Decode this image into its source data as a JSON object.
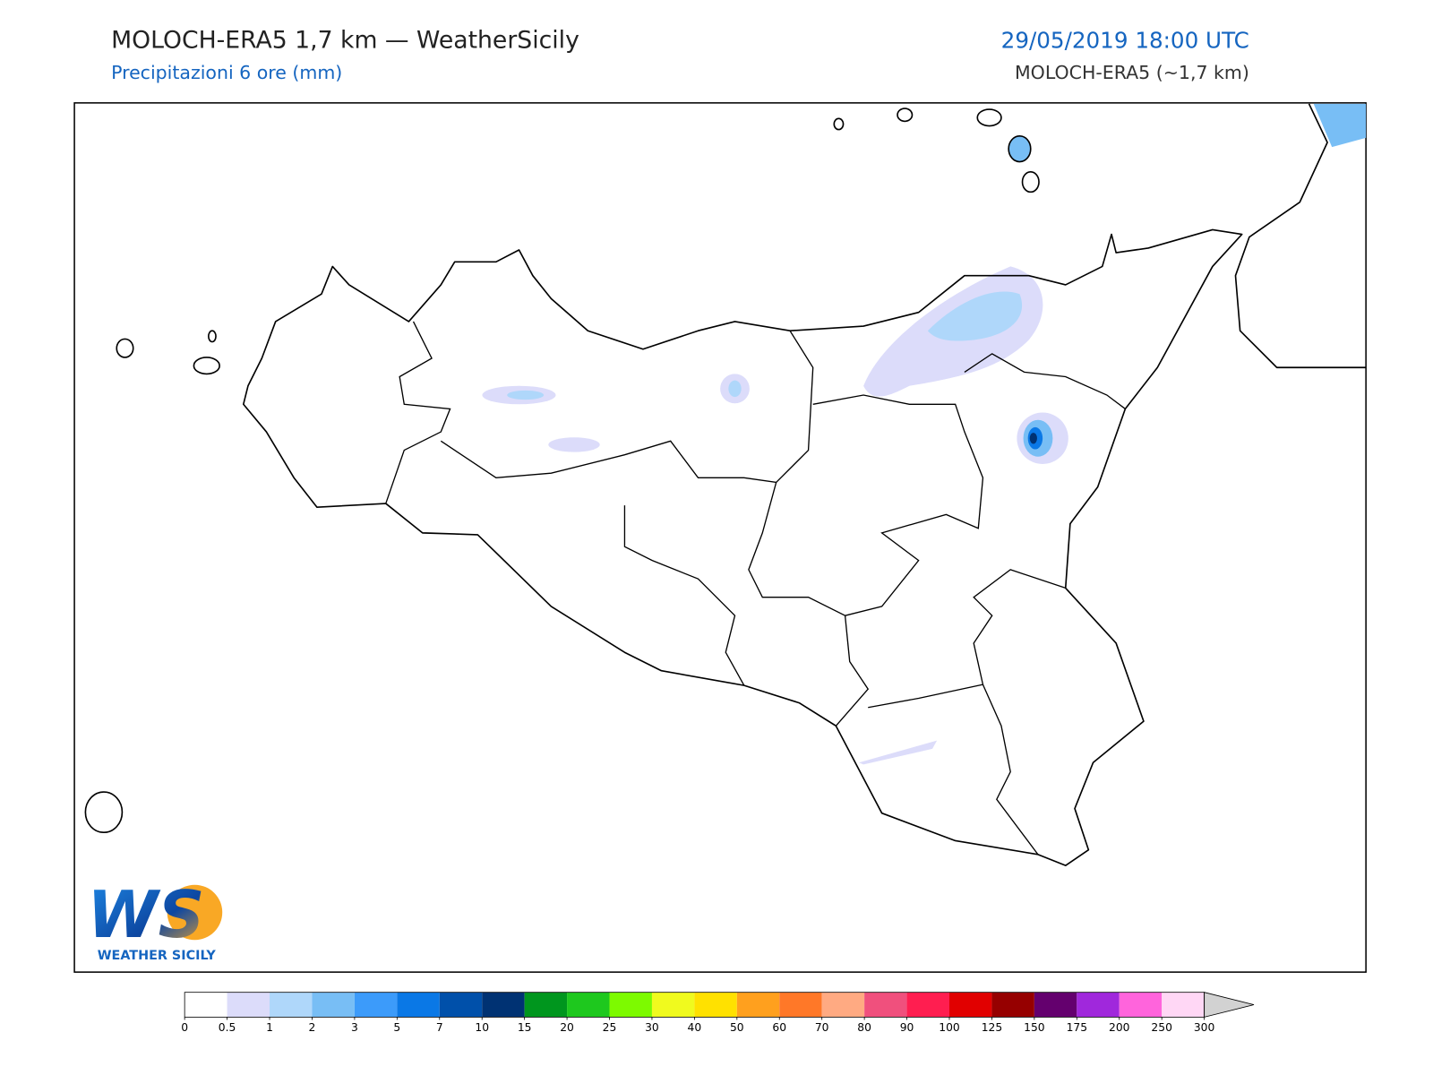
{
  "header": {
    "title": "MOLOCH-ERA5 1,7 km — WeatherSicily",
    "subtitle": "Precipitazioni 6 ore (mm)",
    "datetime": "29/05/2019 18:00 UTC",
    "model": "MOLOCH-ERA5 (~1,7 km)"
  },
  "logo": {
    "letters": "WS",
    "name": "WEATHER SICILY"
  },
  "colorbar": {
    "ticks": [
      0,
      0.5,
      1,
      2,
      3,
      5,
      7,
      10,
      15,
      20,
      25,
      30,
      40,
      50,
      60,
      70,
      80,
      90,
      100,
      125,
      150,
      175,
      200,
      250,
      300
    ],
    "colors": [
      "#ffffff",
      "#dcdcfa",
      "#afd7fa",
      "#78bef5",
      "#3c9bfa",
      "#0a78e6",
      "#0050aa",
      "#003273",
      "#00961e",
      "#1ec81e",
      "#7dfa00",
      "#f0fa1e",
      "#ffe100",
      "#ffa01e",
      "#ff7828",
      "#ffaa82",
      "#f0507d",
      "#ff1e50",
      "#e10000",
      "#960000",
      "#64006e",
      "#a028dc",
      "#ff64dc",
      "#ffd7f5"
    ],
    "over_color": "#d2d2d2"
  }
}
